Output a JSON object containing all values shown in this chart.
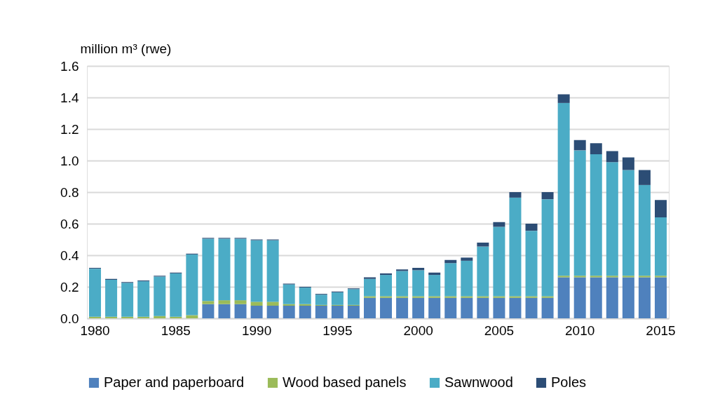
{
  "chart_data": {
    "type": "bar",
    "stacked": true,
    "ylabel": "million m³ (rwe)",
    "categories": [
      "1980",
      null,
      null,
      null,
      null,
      "1985",
      null,
      null,
      null,
      null,
      "1990",
      null,
      null,
      null,
      null,
      "1995",
      null,
      null,
      null,
      null,
      "2000",
      null,
      null,
      null,
      null,
      "2005",
      null,
      null,
      null,
      null,
      "2010",
      null,
      null,
      null,
      null,
      "2015"
    ],
    "series": [
      {
        "name": "Paper and paperboard",
        "color": "#4f81bd",
        "values": [
          0,
          0,
          0,
          0,
          0,
          0,
          0,
          0.09,
          0.09,
          0.09,
          0.08,
          0.08,
          0.08,
          0.08,
          0.08,
          0.08,
          0.08,
          0.13,
          0.13,
          0.13,
          0.13,
          0.13,
          0.13,
          0.13,
          0.13,
          0.13,
          0.13,
          0.13,
          0.13,
          0.26,
          0.26,
          0.26,
          0.26,
          0.26,
          0.26,
          0.26
        ]
      },
      {
        "name": "Wood based panels",
        "color": "#9bbb59",
        "values": [
          0.01,
          0.01,
          0.01,
          0.01,
          0.015,
          0.01,
          0.02,
          0.02,
          0.025,
          0.025,
          0.025,
          0.025,
          0.01,
          0.01,
          0.005,
          0.005,
          0.005,
          0.01,
          0.01,
          0.01,
          0.01,
          0.01,
          0.01,
          0.01,
          0.01,
          0.01,
          0.01,
          0.01,
          0.01,
          0.01,
          0.01,
          0.01,
          0.01,
          0.01,
          0.01,
          0.01
        ]
      },
      {
        "name": "Sawnwood",
        "color": "#4bacc6",
        "values": [
          0.305,
          0.235,
          0.215,
          0.225,
          0.25,
          0.275,
          0.385,
          0.395,
          0.39,
          0.39,
          0.39,
          0.39,
          0.125,
          0.105,
          0.065,
          0.08,
          0.1,
          0.11,
          0.135,
          0.16,
          0.165,
          0.135,
          0.21,
          0.225,
          0.315,
          0.44,
          0.625,
          0.415,
          0.615,
          1.095,
          0.795,
          0.77,
          0.72,
          0.67,
          0.575,
          0.37
        ]
      },
      {
        "name": "Poles",
        "color": "#2c4d75",
        "values": [
          0.005,
          0.005,
          0.005,
          0.005,
          0.005,
          0.005,
          0.005,
          0.005,
          0.005,
          0.005,
          0.005,
          0.005,
          0.005,
          0.005,
          0.005,
          0.005,
          0.005,
          0.01,
          0.01,
          0.01,
          0.015,
          0.015,
          0.02,
          0.02,
          0.025,
          0.03,
          0.035,
          0.045,
          0.045,
          0.055,
          0.065,
          0.07,
          0.07,
          0.08,
          0.095,
          0.11
        ]
      }
    ],
    "ylim": [
      0,
      1.6
    ],
    "yticks": [
      {
        "value": 0,
        "label": "0.0"
      },
      {
        "value": 0.2,
        "label": "0.2"
      },
      {
        "value": 0.4,
        "label": "0.4"
      },
      {
        "value": 0.6,
        "label": "0.6"
      },
      {
        "value": 0.8,
        "label": "0.8"
      },
      {
        "value": 1.0,
        "label": "1.0"
      },
      {
        "value": 1.2,
        "label": "1.2"
      },
      {
        "value": 1.4,
        "label": "1.4"
      },
      {
        "value": 1.6,
        "label": "1.6"
      }
    ],
    "grid": "y",
    "legend": "bottom"
  }
}
